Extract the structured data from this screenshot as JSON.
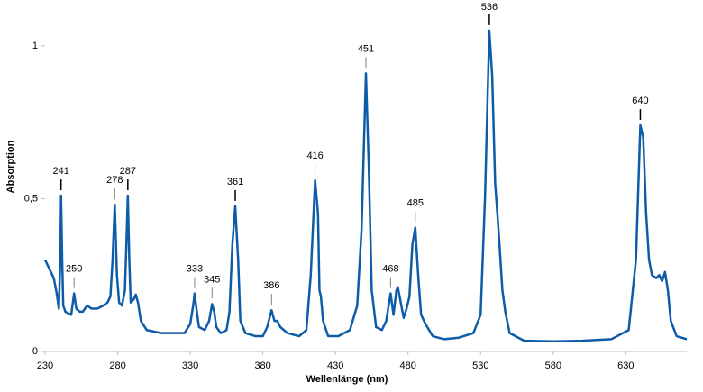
{
  "chart_data": {
    "type": "line",
    "x_label": "Wellenlänge  (nm)",
    "y_label": "Absorption",
    "xlim": [
      230,
      672
    ],
    "ylim": [
      0,
      1.15
    ],
    "xticks": [
      230,
      280,
      330,
      380,
      430,
      480,
      530,
      580,
      630
    ],
    "yticks": [
      0,
      {
        "value": 0.5,
        "label": "0,5"
      },
      1
    ],
    "x": [
      230,
      233,
      236,
      238,
      239.5,
      240.5,
      241,
      241.8,
      242.5,
      244,
      248,
      250,
      251.5,
      254,
      256,
      259,
      262,
      266,
      270,
      273,
      275,
      276.5,
      278,
      279.5,
      281,
      283,
      285,
      286,
      287,
      288,
      289,
      291,
      292.5,
      294,
      296,
      300,
      310,
      320,
      326,
      330,
      332,
      333,
      334,
      336,
      340,
      343,
      345,
      346.5,
      348,
      351,
      355,
      357,
      359,
      361,
      363,
      364.5,
      368,
      375,
      380,
      383,
      386,
      388,
      390,
      392,
      397,
      405,
      410,
      413,
      416,
      418,
      419,
      420,
      421.5,
      425,
      432,
      440,
      445,
      448,
      451,
      453,
      455,
      458,
      462,
      465,
      468,
      470,
      472,
      473,
      475,
      477,
      479,
      481,
      483,
      485,
      487,
      489,
      492,
      497,
      505,
      515,
      525,
      530,
      533,
      536,
      538,
      540,
      542,
      543,
      545,
      547,
      550,
      560,
      580,
      600,
      620,
      632,
      637,
      640,
      642,
      644,
      646,
      648,
      651,
      653,
      655,
      657,
      659,
      661,
      665,
      672
    ],
    "series": [
      {
        "color": "#0e5ca8",
        "values": [
          0.3,
          0.27,
          0.24,
          0.19,
          0.14,
          0.3,
          0.51,
          0.3,
          0.15,
          0.13,
          0.12,
          0.19,
          0.14,
          0.13,
          0.13,
          0.15,
          0.14,
          0.14,
          0.15,
          0.16,
          0.18,
          0.3,
          0.48,
          0.25,
          0.16,
          0.15,
          0.2,
          0.35,
          0.51,
          0.3,
          0.16,
          0.17,
          0.186,
          0.16,
          0.1,
          0.07,
          0.06,
          0.06,
          0.06,
          0.09,
          0.15,
          0.19,
          0.15,
          0.08,
          0.07,
          0.1,
          0.155,
          0.13,
          0.08,
          0.06,
          0.07,
          0.13,
          0.35,
          0.475,
          0.3,
          0.1,
          0.06,
          0.05,
          0.05,
          0.08,
          0.135,
          0.1,
          0.1,
          0.08,
          0.06,
          0.05,
          0.07,
          0.25,
          0.56,
          0.45,
          0.2,
          0.18,
          0.1,
          0.05,
          0.05,
          0.07,
          0.15,
          0.4,
          0.91,
          0.6,
          0.2,
          0.08,
          0.07,
          0.1,
          0.19,
          0.12,
          0.2,
          0.21,
          0.16,
          0.11,
          0.14,
          0.18,
          0.35,
          0.405,
          0.25,
          0.12,
          0.09,
          0.05,
          0.04,
          0.045,
          0.06,
          0.12,
          0.5,
          1.05,
          0.9,
          0.55,
          0.42,
          0.35,
          0.2,
          0.13,
          0.06,
          0.035,
          0.033,
          0.035,
          0.04,
          0.07,
          0.3,
          0.74,
          0.7,
          0.45,
          0.3,
          0.25,
          0.24,
          0.25,
          0.23,
          0.26,
          0.2,
          0.1,
          0.05,
          0.04
        ]
      }
    ],
    "annotations": [
      {
        "value": 241,
        "color": "#000000"
      },
      {
        "value": 250,
        "color": "#7f7f7f"
      },
      {
        "value": 278,
        "color": "#7f7f7f"
      },
      {
        "value": 287,
        "color": "#000000"
      },
      {
        "value": 333,
        "color": "#7f7f7f"
      },
      {
        "value": 345,
        "color": "#7f7f7f"
      },
      {
        "value": 361,
        "color": "#000000"
      },
      {
        "value": 386,
        "color": "#7f7f7f"
      },
      {
        "value": 416,
        "color": "#7f7f7f"
      },
      {
        "value": 451,
        "color": "#7f7f7f"
      },
      {
        "value": 468,
        "color": "#7f7f7f"
      },
      {
        "value": 485,
        "color": "#7f7f7f"
      },
      {
        "value": 536,
        "color": "#000000"
      },
      {
        "value": 640,
        "color": "#000000"
      }
    ]
  }
}
